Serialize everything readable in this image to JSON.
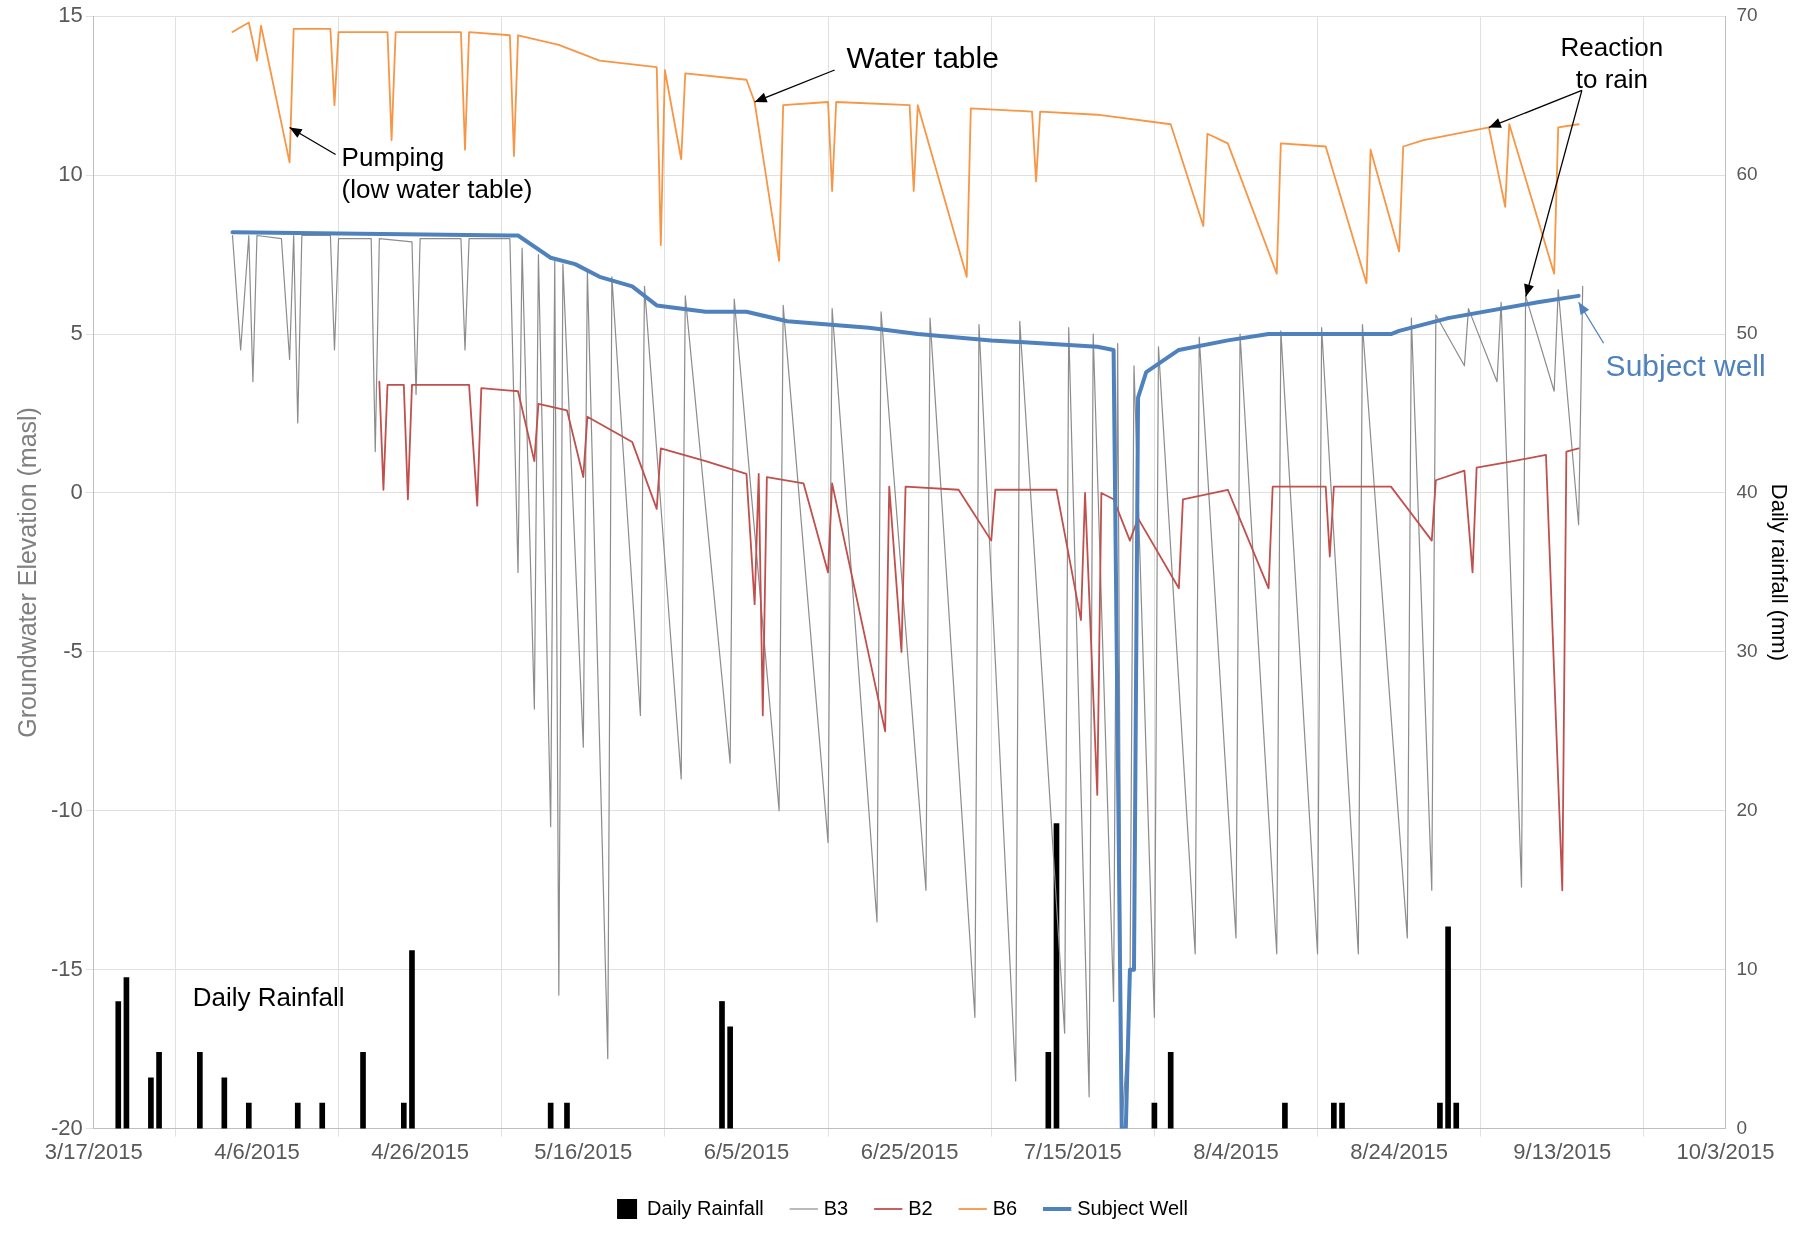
{
  "chart_data": {
    "type": "line",
    "xlabel": null,
    "ylabel": "Groundwater Elevation (masl)",
    "y2label": "Daily rainfall (mm)",
    "xlim": [
      "2015-03-17",
      "2015-10-03"
    ],
    "xticks": [
      {
        "value": "2015-03-17",
        "label": "3/17/2015"
      },
      {
        "value": "2015-04-06",
        "label": "4/6/2015"
      },
      {
        "value": "2015-04-26",
        "label": "4/26/2015"
      },
      {
        "value": "2015-05-16",
        "label": "5/16/2015"
      },
      {
        "value": "2015-06-05",
        "label": "6/5/2015"
      },
      {
        "value": "2015-06-25",
        "label": "6/25/2015"
      },
      {
        "value": "2015-07-15",
        "label": "7/15/2015"
      },
      {
        "value": "2015-08-04",
        "label": "8/4/2015"
      },
      {
        "value": "2015-08-24",
        "label": "8/24/2015"
      },
      {
        "value": "2015-09-13",
        "label": "9/13/2015"
      },
      {
        "value": "2015-10-03",
        "label": "10/3/2015"
      }
    ],
    "ylim": [
      -20,
      15
    ],
    "yticks": [
      -20,
      -15,
      -10,
      -5,
      0,
      5,
      10,
      15
    ],
    "y2lim": [
      0,
      70
    ],
    "y2ticks": [
      0,
      10,
      20,
      30,
      40,
      50,
      60,
      70
    ],
    "grid": true,
    "legend": "bottom",
    "marker": "none",
    "series": [
      {
        "name": "Daily Rainfall",
        "type": "bar",
        "axis": "y2",
        "color": "#000000",
        "x": [
          "2015-03-20",
          "2015-03-21",
          "2015-03-24",
          "2015-03-25",
          "2015-03-30",
          "2015-04-02",
          "2015-04-05",
          "2015-04-11",
          "2015-04-14",
          "2015-04-19",
          "2015-04-24",
          "2015-04-25",
          "2015-05-12",
          "2015-05-14",
          "2015-06-02",
          "2015-06-03",
          "2015-07-12",
          "2015-07-13",
          "2015-07-25",
          "2015-07-27",
          "2015-08-10",
          "2015-08-16",
          "2015-08-17",
          "2015-08-29",
          "2015-08-30",
          "2015-08-31"
        ],
        "values": [
          8,
          9.5,
          3.2,
          4.8,
          4.8,
          3.2,
          1.6,
          1.6,
          1.6,
          4.8,
          1.6,
          11.2,
          1.6,
          1.6,
          8,
          6.4,
          4.8,
          19.2,
          1.6,
          4.8,
          1.6,
          1.6,
          1.6,
          1.6,
          12.7,
          1.6
        ]
      },
      {
        "name": "B3",
        "color": "#8c8c8c",
        "x": [
          "2015-04-03",
          "2015-04-04",
          "2015-04-05",
          "2015-04-05T12:00",
          "2015-04-06",
          "2015-04-09",
          "2015-04-10",
          "2015-04-10T12:00",
          "2015-04-11",
          "2015-04-11T12:00",
          "2015-04-15",
          "2015-04-15T12:00",
          "2015-04-16",
          "2015-04-20",
          "2015-04-20T12:00",
          "2015-04-21",
          "2015-04-25",
          "2015-04-25T12:00",
          "2015-04-26",
          "2015-05-01",
          "2015-05-01T12:00",
          "2015-05-02",
          "2015-05-07",
          "2015-05-08",
          "2015-05-08T12:00",
          "2015-05-10",
          "2015-05-10T12:00",
          "2015-05-12",
          "2015-05-12T12:00",
          "2015-05-13",
          "2015-05-13T12:00",
          "2015-05-16",
          "2015-05-16T12:00",
          "2015-05-19",
          "2015-05-19T12:00",
          "2015-05-23",
          "2015-05-23T12:00",
          "2015-05-28",
          "2015-05-28T12:00",
          "2015-06-03",
          "2015-06-03T12:00",
          "2015-06-09",
          "2015-06-09T12:00",
          "2015-06-15",
          "2015-06-15T12:00",
          "2015-06-21",
          "2015-06-21T12:00",
          "2015-06-27",
          "2015-06-27T12:00",
          "2015-07-03",
          "2015-07-03T12:00",
          "2015-07-08",
          "2015-07-08T12:00",
          "2015-07-14",
          "2015-07-14T12:00",
          "2015-07-17",
          "2015-07-17T12:00",
          "2015-07-20",
          "2015-07-20T12:00",
          "2015-07-21",
          "2015-07-22",
          "2015-07-22T12:00",
          "2015-07-25",
          "2015-07-25T12:00",
          "2015-07-30",
          "2015-07-30T12:00",
          "2015-08-04",
          "2015-08-04T12:00",
          "2015-08-09",
          "2015-08-09T12:00",
          "2015-08-14",
          "2015-08-14T12:00",
          "2015-08-19",
          "2015-08-19T12:00",
          "2015-08-25",
          "2015-08-25T12:00",
          "2015-08-28",
          "2015-08-28T12:00",
          "2015-09-01",
          "2015-09-01T12:00",
          "2015-09-05",
          "2015-09-05T12:00",
          "2015-09-08",
          "2015-09-08T12:00",
          "2015-09-12",
          "2015-09-12T12:00",
          "2015-09-15",
          "2015-09-15T12:00"
        ],
        "values": [
          8.1,
          4.5,
          8.1,
          3.5,
          8.1,
          8,
          4.2,
          8.1,
          2.2,
          8.1,
          8.1,
          4.5,
          8,
          8,
          1.3,
          8,
          7.9,
          3.1,
          8,
          8,
          4.5,
          8,
          8,
          -2.5,
          7.7,
          -6.8,
          7.5,
          -10.5,
          7.3,
          -15.8,
          7.2,
          -8,
          7,
          -17.8,
          6.8,
          -7,
          6.5,
          -9,
          6.2,
          -8.5,
          6.1,
          -10,
          5.9,
          -11,
          5.8,
          -13.5,
          5.7,
          -12.5,
          5.5,
          -16.5,
          5.3,
          -18.5,
          5.4,
          -17,
          5.2,
          -19,
          5,
          -16,
          4.7,
          -20,
          -16,
          4,
          -16.5,
          4.6,
          -14.5,
          4.9,
          -14,
          5,
          -14.5,
          5.1,
          -14.5,
          5.2,
          -14.5,
          5.3,
          -14,
          5.5,
          -12.5,
          5.6,
          4,
          5.8,
          3.5,
          6,
          -12.4,
          6.2,
          3.2,
          6.4,
          -1,
          6.5
        ]
      },
      {
        "name": "B2",
        "color": "#c0504d",
        "x": [
          "2015-04-21",
          "2015-04-21T12:00",
          "2015-04-22",
          "2015-04-24",
          "2015-04-24T12:00",
          "2015-04-25",
          "2015-05-02",
          "2015-05-03",
          "2015-05-03T12:00",
          "2015-05-08",
          "2015-05-10",
          "2015-05-10T12:00",
          "2015-05-14",
          "2015-05-16",
          "2015-05-16T12:00",
          "2015-05-22",
          "2015-05-25",
          "2015-05-25T12:00",
          "2015-05-31",
          "2015-06-05",
          "2015-06-06",
          "2015-06-06T12:00",
          "2015-06-07",
          "2015-06-07T12:00",
          "2015-06-12",
          "2015-06-15",
          "2015-06-15T12:00",
          "2015-06-22",
          "2015-06-22T12:00",
          "2015-06-24",
          "2015-06-24T12:00",
          "2015-07-01",
          "2015-07-05",
          "2015-07-05T12:00",
          "2015-07-13",
          "2015-07-16",
          "2015-07-16T12:00",
          "2015-07-18",
          "2015-07-18T12:00",
          "2015-07-20",
          "2015-07-22",
          "2015-07-23",
          "2015-07-28",
          "2015-07-28T12:00",
          "2015-08-03",
          "2015-08-08",
          "2015-08-08T12:00",
          "2015-08-15",
          "2015-08-15T12:00",
          "2015-08-16",
          "2015-08-23",
          "2015-08-28",
          "2015-08-28T12:00",
          "2015-09-01",
          "2015-09-02",
          "2015-09-02T12:00",
          "2015-09-07",
          "2015-09-11",
          "2015-09-13",
          "2015-09-13T12:00",
          "2015-09-15"
        ],
        "values": [
          3.5,
          0.1,
          3.4,
          3.4,
          -0.2,
          3.4,
          3.4,
          -0.4,
          3.3,
          3.2,
          1,
          2.8,
          2.6,
          0.5,
          2.4,
          1.6,
          -0.5,
          1.4,
          1,
          0.6,
          -3.5,
          0.6,
          -7,
          0.5,
          0.3,
          -2.5,
          0.3,
          -7.5,
          0.2,
          -5,
          0.2,
          0.1,
          -1.5,
          0.1,
          0.1,
          -4,
          0,
          -9.5,
          0,
          -0.2,
          -1.5,
          -0.8,
          -3,
          -0.2,
          0.1,
          -3,
          0.2,
          0.2,
          -2,
          0.2,
          0.2,
          -1.5,
          0.4,
          0.7,
          -2.5,
          0.8,
          1,
          1.2,
          -12.5,
          1.3,
          1.4
        ]
      },
      {
        "name": "B6",
        "color": "#f79646",
        "x": [
          "2015-04-03",
          "2015-04-05",
          "2015-04-06",
          "2015-04-06T12:00",
          "2015-04-10",
          "2015-04-10T12:00",
          "2015-04-15",
          "2015-04-15T12:00",
          "2015-04-16",
          "2015-04-22",
          "2015-04-22T12:00",
          "2015-04-23",
          "2015-05-01",
          "2015-05-01T12:00",
          "2015-05-02",
          "2015-05-07",
          "2015-05-07T12:00",
          "2015-05-08",
          "2015-05-13",
          "2015-05-18",
          "2015-05-25",
          "2015-05-25T12:00",
          "2015-05-26",
          "2015-05-28",
          "2015-05-28T12:00",
          "2015-06-05",
          "2015-06-06",
          "2015-06-09",
          "2015-06-09T12:00",
          "2015-06-15",
          "2015-06-15T12:00",
          "2015-06-16",
          "2015-06-25",
          "2015-06-25T12:00",
          "2015-06-26",
          "2015-07-02",
          "2015-07-02T12:00",
          "2015-07-10",
          "2015-07-10T12:00",
          "2015-07-11",
          "2015-07-18",
          "2015-07-27",
          "2015-07-31",
          "2015-07-31T12:00",
          "2015-08-03",
          "2015-08-09",
          "2015-08-09T12:00",
          "2015-08-15",
          "2015-08-20",
          "2015-08-20T12:00",
          "2015-08-24",
          "2015-08-24T12:00",
          "2015-08-27",
          "2015-09-04",
          "2015-09-06",
          "2015-09-06T12:00",
          "2015-09-12",
          "2015-09-12T12:00",
          "2015-09-15"
        ],
        "values": [
          14.5,
          14.8,
          13.6,
          14.7,
          10.4,
          14.6,
          14.6,
          12.2,
          14.5,
          14.5,
          11.1,
          14.5,
          14.5,
          10.8,
          14.5,
          14.4,
          10.6,
          14.4,
          14.1,
          13.6,
          13.4,
          7.8,
          13.3,
          10.5,
          13.2,
          13,
          12.3,
          7.3,
          12.2,
          12.3,
          9.5,
          12.3,
          12.2,
          9.5,
          12.2,
          6.8,
          12.1,
          12,
          9.8,
          12,
          11.9,
          11.6,
          8.4,
          11.3,
          11,
          6.9,
          11,
          10.9,
          6.6,
          10.8,
          7.6,
          10.9,
          11.1,
          11.5,
          9,
          11.6,
          6.9,
          11.5,
          11.6
        ]
      },
      {
        "name": "Subject Well",
        "color": "#4f81bd",
        "x": [
          "2015-04-03",
          "2015-05-08",
          "2015-05-12",
          "2015-05-15",
          "2015-05-18",
          "2015-05-22",
          "2015-05-25",
          "2015-05-31",
          "2015-06-05",
          "2015-06-10",
          "2015-06-20",
          "2015-06-26",
          "2015-07-05",
          "2015-07-18",
          "2015-07-20",
          "2015-07-21",
          "2015-07-21T12:00",
          "2015-07-22",
          "2015-07-22T12:00",
          "2015-07-23",
          "2015-07-24",
          "2015-07-28",
          "2015-08-03",
          "2015-08-08",
          "2015-08-23",
          "2015-08-24",
          "2015-08-30",
          "2015-09-10",
          "2015-09-15"
        ],
        "values": [
          8.2,
          8.1,
          7.4,
          7.2,
          6.8,
          6.5,
          5.9,
          5.7,
          5.7,
          5.4,
          5.2,
          5,
          4.8,
          4.6,
          4.5,
          -20,
          -20,
          -15,
          -15,
          3,
          3.8,
          4.5,
          4.8,
          5,
          5,
          5.1,
          5.5,
          6,
          6.2
        ]
      }
    ],
    "annotations": [
      {
        "text": "Water table",
        "x": "2015-06-06",
        "y": 12.3
      },
      {
        "text": "Pumping\n(low water table)",
        "x": "2015-04-10",
        "y": 11.5
      },
      {
        "text": "Reaction\nto rain",
        "x": "2015-09-04",
        "y": 11.5
      },
      {
        "text": "Subject well",
        "x": "2015-09-15",
        "y": 6
      },
      "Daily Rainfall"
    ]
  }
}
